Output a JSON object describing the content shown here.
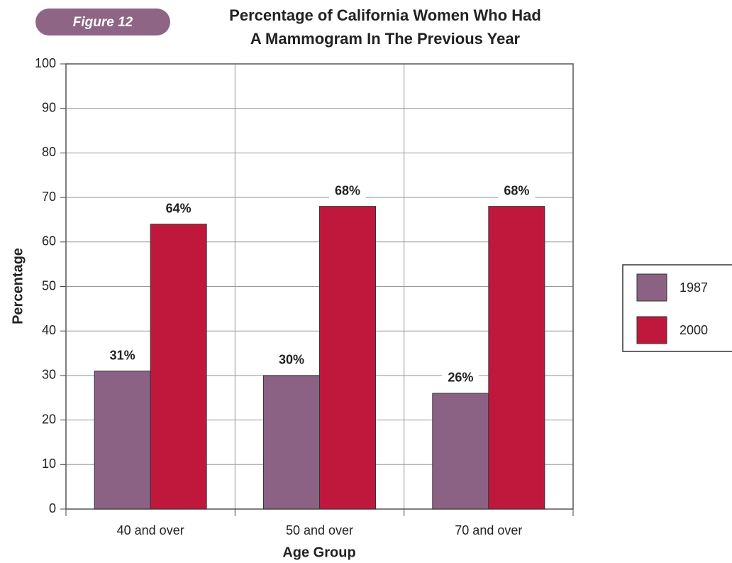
{
  "chart_data": {
    "type": "bar",
    "figure_label": "Figure 12",
    "title": "Percentage of California Women Who Had",
    "subtitle": "A Mammogram In The Previous Year",
    "x_label": "Age Group",
    "y_label": "Percentage",
    "categories": [
      "40 and over",
      "50 and over",
      "70 and over"
    ],
    "series": [
      {
        "name": "1987",
        "color": "#8b6283",
        "values": [
          31,
          30,
          26
        ],
        "value_labels": [
          "31%",
          "30%",
          "26%"
        ]
      },
      {
        "name": "2000",
        "color": "#c0183c",
        "values": [
          64,
          68,
          68
        ],
        "value_labels": [
          "64%",
          "68%",
          "68%"
        ]
      }
    ],
    "ylim": [
      0,
      100
    ],
    "yticks": [
      0,
      10,
      20,
      30,
      40,
      50,
      60,
      70,
      80,
      90,
      100
    ],
    "grid": true,
    "legend": "right"
  }
}
